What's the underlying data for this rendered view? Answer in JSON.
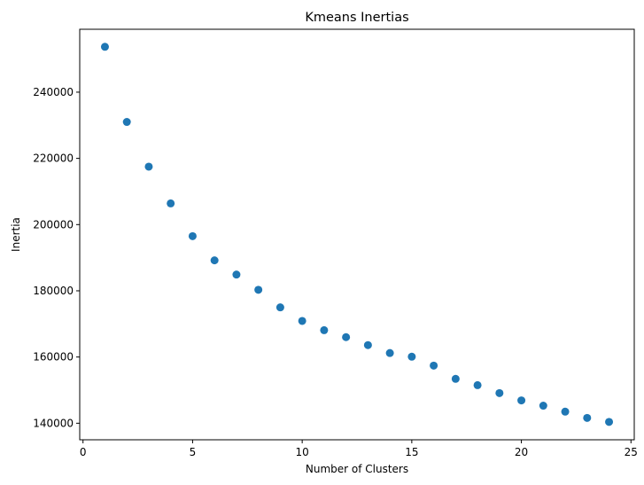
{
  "chart_data": {
    "type": "scatter",
    "title": "Kmeans Inertias",
    "xlabel": "Number of Clusters",
    "ylabel": "Inertia",
    "xlim": [
      -0.15,
      25.15
    ],
    "ylim": [
      135000,
      259000
    ],
    "xticks": [
      0,
      5,
      10,
      15,
      20,
      25
    ],
    "yticks": [
      140000,
      160000,
      180000,
      200000,
      220000,
      240000
    ],
    "grid": false,
    "marker_color": "#1f77b4",
    "x": [
      1,
      2,
      3,
      4,
      5,
      6,
      7,
      8,
      9,
      10,
      11,
      12,
      13,
      14,
      15,
      16,
      17,
      18,
      19,
      20,
      21,
      22,
      23,
      24
    ],
    "y": [
      253700,
      231000,
      217500,
      206400,
      196500,
      189200,
      184900,
      180300,
      175000,
      170900,
      168100,
      166000,
      163600,
      161200,
      160100,
      157400,
      153400,
      151500,
      149100,
      146900,
      145300,
      143500,
      141600,
      140400
    ]
  }
}
